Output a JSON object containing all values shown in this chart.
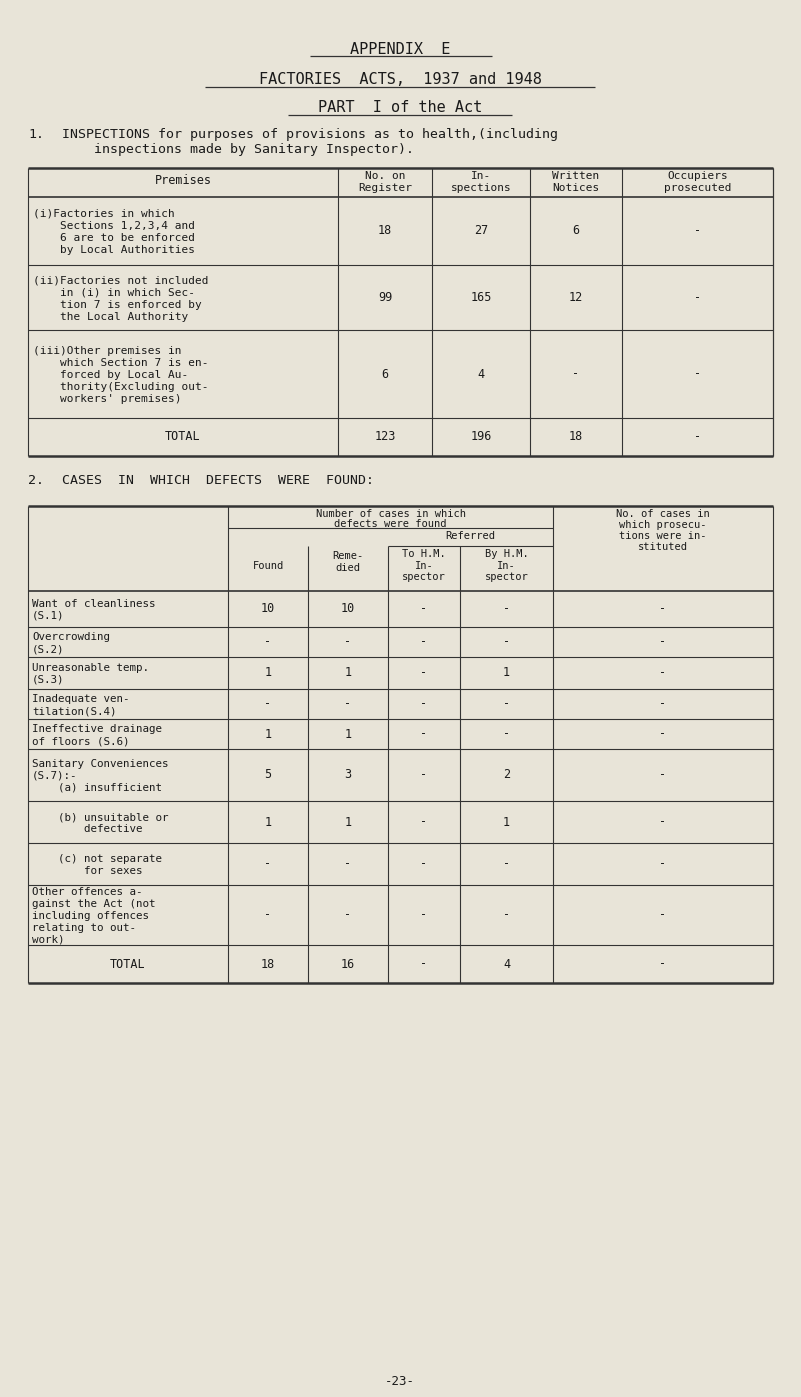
{
  "bg_color": "#e8e4d8",
  "text_color": "#1a1a1a",
  "title1": "APPENDIX  E",
  "title2": "FACTORIES  ACTS,  1937 and 1948",
  "title3": "PART  I of the Act",
  "section1_label": "1.",
  "section1_text1": "INSPECTIONS for purposes of provisions as to health,(including",
  "section1_text2": "    inspections made by Sanitary Inspector).",
  "section2_label": "2.",
  "section2_text": "CASES  IN  WHICH  DEFECTS  WERE  FOUND:",
  "page_num": "-23-",
  "table1_rows": [
    {
      "label_lines": [
        "(i)Factories in which",
        "    Sections 1,2,3,4 and",
        "    6 are to be enforced",
        "    by Local Authorities"
      ],
      "values": [
        "18",
        "27",
        "6",
        "-"
      ],
      "is_total": false
    },
    {
      "label_lines": [
        "(ii)Factories not included",
        "    in (i) in which Sec-",
        "    tion 7 is enforced by",
        "    the Local Authority"
      ],
      "values": [
        "99",
        "165",
        "12",
        "-"
      ],
      "is_total": false
    },
    {
      "label_lines": [
        "(iii)Other premises in",
        "    which Section 7 is en-",
        "    forced by Local Au-",
        "    thority(Excluding out-",
        "    workers' premises)"
      ],
      "values": [
        "6",
        "4",
        "-",
        "-"
      ],
      "is_total": false
    },
    {
      "label_lines": [
        "TOTAL"
      ],
      "values": [
        "123",
        "196",
        "18",
        "-"
      ],
      "is_total": true
    }
  ],
  "table2_rows": [
    {
      "label_lines": [
        "Want of cleanliness",
        "(S.1)"
      ],
      "values": [
        "10",
        "10",
        "-",
        "-",
        "-"
      ],
      "is_total": false
    },
    {
      "label_lines": [
        "Overcrowding",
        "(S.2)"
      ],
      "values": [
        "-",
        "-",
        "-",
        "-",
        "-"
      ],
      "is_total": false
    },
    {
      "label_lines": [
        "Unreasonable temp.",
        "(S.3)"
      ],
      "values": [
        "1",
        "1",
        "-",
        "1",
        "-"
      ],
      "is_total": false
    },
    {
      "label_lines": [
        "Inadequate ven-",
        "tilation(S.4)"
      ],
      "values": [
        "-",
        "-",
        "-",
        "-",
        "-"
      ],
      "is_total": false
    },
    {
      "label_lines": [
        "Ineffective drainage",
        "of floors (S.6)"
      ],
      "values": [
        "1",
        "1",
        "-",
        "-",
        "-"
      ],
      "is_total": false
    },
    {
      "label_lines": [
        "Sanitary Conveniences",
        "(S.7):-",
        "    (a) insufficient"
      ],
      "values": [
        "5",
        "3",
        "-",
        "2",
        "-"
      ],
      "is_total": false
    },
    {
      "label_lines": [
        "    (b) unsuitable or",
        "        defective"
      ],
      "values": [
        "1",
        "1",
        "-",
        "1",
        "-"
      ],
      "is_total": false
    },
    {
      "label_lines": [
        "    (c) not separate",
        "        for sexes"
      ],
      "values": [
        "-",
        "-",
        "-",
        "-",
        "-"
      ],
      "is_total": false
    },
    {
      "label_lines": [
        "Other offences a-",
        "gainst the Act (not",
        "including offences",
        "relating to out-",
        "work)"
      ],
      "values": [
        "-",
        "-",
        "-",
        "-",
        "-"
      ],
      "is_total": false
    },
    {
      "label_lines": [
        "TOTAL"
      ],
      "values": [
        "18",
        "16",
        "-",
        "4",
        "-"
      ],
      "is_total": true
    }
  ]
}
